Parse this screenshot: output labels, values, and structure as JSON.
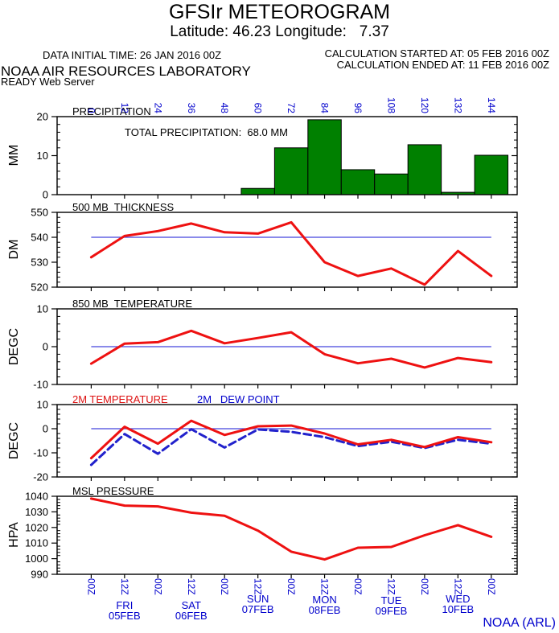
{
  "header": {
    "title": "GFSIr METEOROGRAM",
    "subtitle": "Latitude: 46.23 Longitude:   7.37",
    "data_initial_time": "DATA INITIAL TIME: 26 JAN 2016 00Z",
    "calc_started": "CALCULATION STARTED AT: 05 FEB 2016 00Z",
    "calc_ended": "CALCULATION ENDED AT: 11 FEB 2016 00Z",
    "org": "NOAA AIR RESOURCES LABORATORY",
    "server": "READY Web Server"
  },
  "footer": {
    "credit": "NOAA (ARL)"
  },
  "colors": {
    "axis_text_blue": "#0000cc",
    "line_red": "#ee1111",
    "ref_blue": "#4444dd",
    "dew_blue": "#2222cc",
    "bar_green": "#008000",
    "frame_black": "#000000"
  },
  "top_axis": {
    "hours": [
      0,
      12,
      24,
      36,
      48,
      60,
      72,
      84,
      96,
      108,
      120,
      132,
      144
    ]
  },
  "bottom_axis": {
    "time_labels": [
      "00Z",
      "12Z",
      "00Z",
      "12Z",
      "00Z",
      "12Z",
      "00Z",
      "12Z",
      "00Z",
      "12Z",
      "00Z",
      "12Z",
      "00Z"
    ],
    "days": [
      {
        "name": "FRI",
        "date": "05FEB",
        "hour": 12
      },
      {
        "name": "SAT",
        "date": "06FEB",
        "hour": 36
      },
      {
        "name": "SUN",
        "date": "07FEB",
        "hour": 60
      },
      {
        "name": "MON",
        "date": "08FEB",
        "hour": 84
      },
      {
        "name": "TUE",
        "date": "09FEB",
        "hour": 108
      },
      {
        "name": "WED",
        "date": "10FEB",
        "hour": 132
      }
    ]
  },
  "chart_data": [
    {
      "type": "bar",
      "panel": "precipitation",
      "title": "PRECIPITATION",
      "note": "TOTAL PRECIPITATION:  68.0 MM",
      "total_precipitation_mm": 68.0,
      "ylabel": "MM",
      "ylim": [
        0,
        20
      ],
      "yticks": [
        0,
        10,
        20
      ],
      "minor_step": 2,
      "bar_width_hours": 12,
      "x_hours": [
        60,
        72,
        84,
        96,
        108,
        120,
        132,
        144
      ],
      "values": [
        1.6,
        12.0,
        19.2,
        6.4,
        5.3,
        12.8,
        0.6,
        10.1
      ],
      "bar_color": "#008000"
    },
    {
      "type": "line",
      "panel": "thickness-500mb",
      "title": "500 MB  THICKNESS",
      "ylabel": "DM",
      "ylim": [
        520,
        550
      ],
      "yticks": [
        520,
        530,
        540,
        550
      ],
      "minor_step": 2,
      "ref_line": 540,
      "x_hours": [
        0,
        12,
        24,
        36,
        48,
        60,
        72,
        84,
        96,
        108,
        120,
        132,
        144
      ],
      "values": [
        532,
        540.5,
        542.5,
        545.5,
        542,
        541.5,
        546,
        530,
        524.5,
        527.5,
        521,
        534.5,
        524.5
      ],
      "line_color": "#ee1111"
    },
    {
      "type": "line",
      "panel": "temperature-850mb",
      "title": "850 MB  TEMPERATURE",
      "ylabel": "DEGC",
      "ylim": [
        -10,
        10
      ],
      "yticks": [
        -10,
        0,
        10
      ],
      "minor_step": 2,
      "ref_line": 0,
      "x_hours": [
        0,
        12,
        24,
        36,
        48,
        60,
        72,
        84,
        96,
        108,
        120,
        132,
        144
      ],
      "values": [
        -4.5,
        0.8,
        1.2,
        4.2,
        0.9,
        2.3,
        3.8,
        -2.0,
        -4.4,
        -3.2,
        -5.5,
        -3.0,
        -4.1
      ],
      "line_color": "#ee1111"
    },
    {
      "type": "line-multi",
      "panel": "temperature-2m",
      "legend": [
        {
          "label": "2M TEMPERATURE",
          "color": "#dd1111"
        },
        {
          "label": "2M   DEW POINT",
          "color": "#0000cc"
        }
      ],
      "ylabel": "DEGC",
      "ylim": [
        -20,
        10
      ],
      "yticks": [
        -20,
        -10,
        0,
        10
      ],
      "minor_step": 2,
      "ref_line": 0,
      "x_hours": [
        0,
        12,
        24,
        36,
        48,
        60,
        72,
        84,
        96,
        108,
        120,
        132,
        144
      ],
      "series": [
        {
          "name": "2M TEMPERATURE",
          "color": "#ee1111",
          "style": "solid",
          "values": [
            -12.2,
            0.8,
            -6.2,
            3.3,
            -2.6,
            1.0,
            1.3,
            -2.0,
            -6.5,
            -4.6,
            -7.6,
            -3.5,
            -5.6
          ]
        },
        {
          "name": "2M DEW POINT",
          "color": "#2222cc",
          "style": "dashed",
          "values": [
            -15.0,
            -2.2,
            -10.4,
            -0.2,
            -7.8,
            -0.3,
            -1.3,
            -3.5,
            -7.2,
            -5.4,
            -8.0,
            -4.6,
            -6.2
          ]
        }
      ]
    },
    {
      "type": "line",
      "panel": "msl-pressure",
      "title": "MSL PRESSURE",
      "ylabel": "HPA",
      "ylim": [
        990,
        1040
      ],
      "yticks": [
        990,
        1000,
        1010,
        1020,
        1030,
        1040
      ],
      "minor_step": 2,
      "ref_line": null,
      "x_hours": [
        0,
        12,
        24,
        36,
        48,
        60,
        72,
        84,
        96,
        108,
        120,
        132,
        144
      ],
      "values": [
        1038.5,
        1034,
        1033.5,
        1029.5,
        1027.5,
        1018,
        1004.5,
        999.5,
        1007,
        1007.5,
        1015,
        1021.5,
        1014
      ],
      "line_color": "#ee1111"
    }
  ]
}
